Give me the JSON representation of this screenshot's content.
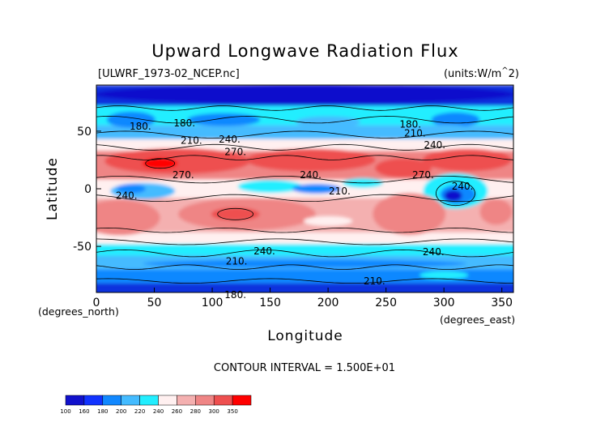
{
  "chart_data": {
    "type": "heatmap",
    "title": "Upward Longwave Radiation Flux",
    "dataset_label": "[ULWRF_1973-02_NCEP.nc]",
    "units_label": "(units:W/m^2)",
    "xlabel": "Longitude",
    "ylabel": "Latitude",
    "x_unit_note": "(degrees_east)",
    "y_unit_note": "(degrees_north)",
    "xlim": [
      0,
      360
    ],
    "ylim": [
      -90,
      90
    ],
    "x_ticks": [
      0,
      50,
      100,
      150,
      200,
      250,
      300,
      350
    ],
    "y_ticks": [
      -50,
      0,
      50
    ],
    "contour_interval_text": "CONTOUR INTERVAL = 1.500E+01",
    "contour_labels": [
      {
        "lon": 38,
        "lat": 54,
        "text": "180."
      },
      {
        "lon": 76,
        "lat": 57,
        "text": "180."
      },
      {
        "lon": 82,
        "lat": 42,
        "text": "210."
      },
      {
        "lon": 115,
        "lat": 43,
        "text": "240."
      },
      {
        "lon": 120,
        "lat": 32,
        "text": "270."
      },
      {
        "lon": 75,
        "lat": 12,
        "text": "270."
      },
      {
        "lon": 185,
        "lat": 12,
        "text": "240."
      },
      {
        "lon": 210,
        "lat": -2,
        "text": "210."
      },
      {
        "lon": 282,
        "lat": 12,
        "text": "270."
      },
      {
        "lon": 316,
        "lat": 2,
        "text": "240."
      },
      {
        "lon": 26,
        "lat": -6,
        "text": "240."
      },
      {
        "lon": 121,
        "lat": -63,
        "text": "210."
      },
      {
        "lon": 145,
        "lat": -54,
        "text": "240."
      },
      {
        "lon": 291,
        "lat": -55,
        "text": "240."
      },
      {
        "lon": 271,
        "lat": 56,
        "text": "180."
      },
      {
        "lon": 275,
        "lat": 48,
        "text": "210."
      },
      {
        "lon": 292,
        "lat": 38,
        "text": "240."
      },
      {
        "lon": 240,
        "lat": -80,
        "text": "210."
      },
      {
        "lon": 120,
        "lat": -92,
        "text": "180."
      }
    ],
    "colorbar": {
      "ticks": [
        100,
        160,
        180,
        200,
        220,
        240,
        260,
        280,
        300,
        350
      ],
      "colors": [
        "#1111cc",
        "#1133ff",
        "#1188ff",
        "#44bbff",
        "#22eeff",
        "#fff0f0",
        "#f4b0b0",
        "#ef8585",
        "#ee4f4f",
        "#ff0000"
      ]
    },
    "grid": false
  }
}
